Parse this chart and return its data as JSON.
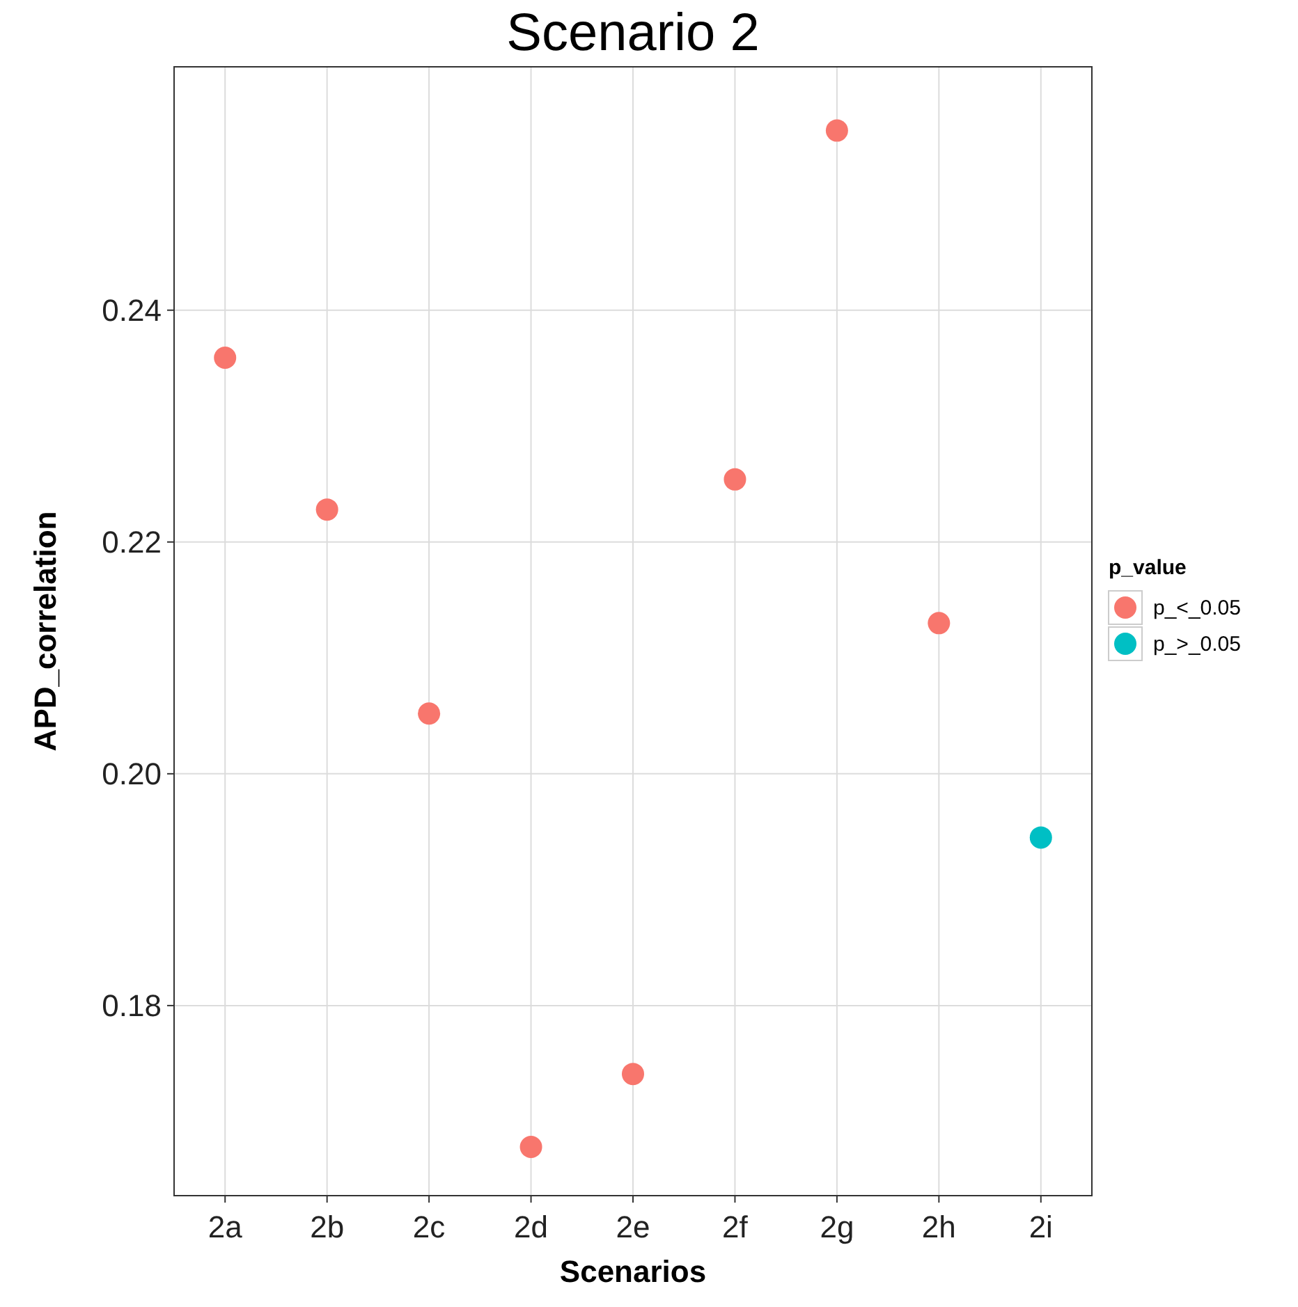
{
  "chart_data": {
    "type": "scatter",
    "title": "Scenario 2",
    "xlabel": "Scenarios",
    "ylabel": "APD_correlation",
    "legend_title": "p_value",
    "categories": [
      "2a",
      "2b",
      "2c",
      "2d",
      "2e",
      "2f",
      "2g",
      "2h",
      "2i"
    ],
    "series": [
      {
        "name": "p_<_0.05",
        "color": "#f8766d",
        "values": [
          0.2359,
          0.2228,
          0.2052,
          0.1678,
          0.1741,
          0.2254,
          0.2555,
          0.213,
          null
        ]
      },
      {
        "name": "p_>_0.05",
        "color": "#00bfc4",
        "values": [
          null,
          null,
          null,
          null,
          null,
          null,
          null,
          null,
          0.1945
        ]
      }
    ],
    "ylim": [
      0.1636,
      0.261
    ],
    "yticks": [
      0.18,
      {
        "value": 0.2,
        "label": "0.20"
      },
      0.22,
      0.24
    ],
    "grid": true,
    "legend": "right",
    "marker": "circle"
  }
}
